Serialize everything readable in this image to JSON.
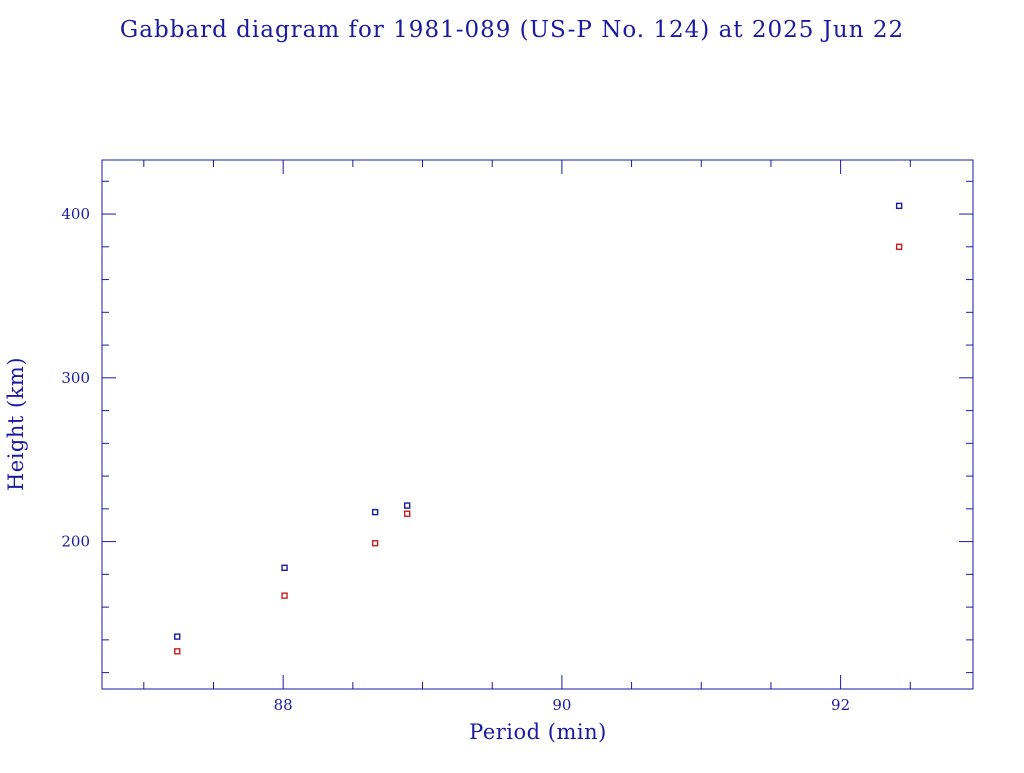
{
  "chart_data": {
    "type": "scatter",
    "title": "Gabbard diagram for 1981-089 (US-P No. 124) at 2025 Jun 22",
    "xlabel": "Period (min)",
    "ylabel": "Height (km)",
    "xlim": [
      86.7,
      92.95
    ],
    "ylim": [
      110,
      433
    ],
    "x_major_ticks": [
      88,
      90,
      92
    ],
    "x_minor_ticks": [
      87.0,
      87.5,
      88.5,
      89.0,
      89.5,
      90.5,
      91.0,
      91.5,
      92.5
    ],
    "y_major_ticks": [
      200,
      300,
      400
    ],
    "y_minor_ticks": [
      120,
      140,
      160,
      180,
      220,
      240,
      260,
      280,
      320,
      340,
      360,
      380,
      420
    ],
    "grid": false,
    "colors": {
      "frame": "#1a1aa0",
      "apogee": "#1a1aa0",
      "perigee": "#c81e1e"
    },
    "series": [
      {
        "marker_color": "#1a1aa0",
        "points": [
          {
            "x": 87.24,
            "y": 142
          },
          {
            "x": 88.01,
            "y": 184
          },
          {
            "x": 88.66,
            "y": 218
          },
          {
            "x": 88.89,
            "y": 222
          },
          {
            "x": 92.42,
            "y": 405
          }
        ]
      },
      {
        "marker_color": "#c81e1e",
        "points": [
          {
            "x": 87.24,
            "y": 133
          },
          {
            "x": 88.01,
            "y": 167
          },
          {
            "x": 88.66,
            "y": 199
          },
          {
            "x": 88.89,
            "y": 217
          },
          {
            "x": 92.42,
            "y": 380
          }
        ]
      }
    ]
  }
}
